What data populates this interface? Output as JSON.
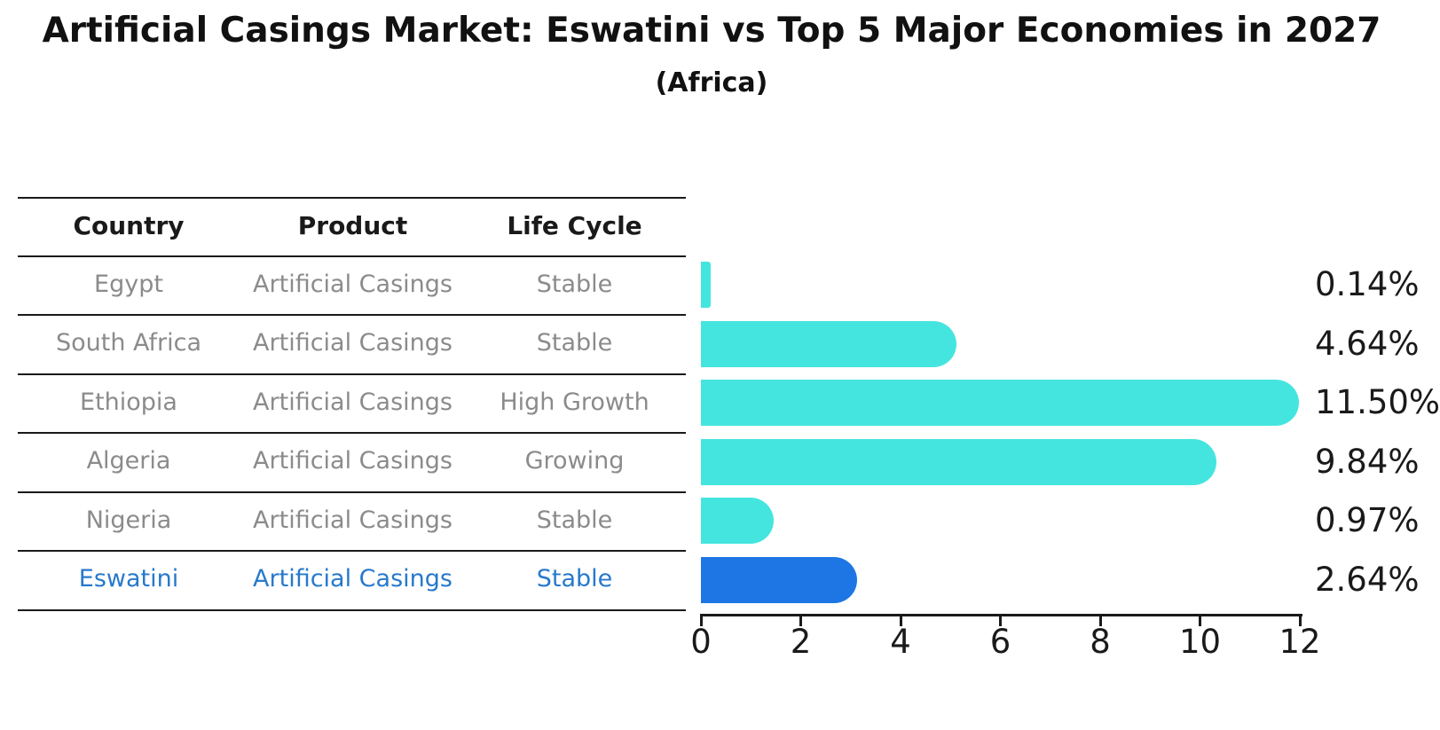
{
  "title": "Artificial Casings Market: Eswatini vs Top 5 Major Economies in 2027",
  "subtitle": "(Africa)",
  "table": {
    "headers": [
      "Country",
      "Product",
      "Life Cycle"
    ],
    "rows": [
      {
        "country": "Egypt",
        "product": "Artificial Casings",
        "life_cycle": "Stable",
        "highlighted": false
      },
      {
        "country": "South Africa",
        "product": "Artificial Casings",
        "life_cycle": "Stable",
        "highlighted": false
      },
      {
        "country": "Ethiopia",
        "product": "Artificial Casings",
        "life_cycle": "High Growth",
        "highlighted": false
      },
      {
        "country": "Algeria",
        "product": "Artificial Casings",
        "life_cycle": "Growing",
        "highlighted": false
      },
      {
        "country": "Nigeria",
        "product": "Artificial Casings",
        "life_cycle": "Stable",
        "highlighted": false
      },
      {
        "country": "Eswatini",
        "product": "Artificial Casings",
        "life_cycle": "Stable",
        "highlighted": true
      }
    ]
  },
  "chart_data": {
    "type": "bar",
    "orientation": "horizontal",
    "title": "Artificial Casings Market: Eswatini vs Top 5 Major Economies in 2027",
    "subtitle": "(Africa)",
    "categories": [
      "Egypt",
      "South Africa",
      "Ethiopia",
      "Algeria",
      "Nigeria",
      "Eswatini"
    ],
    "values": [
      0.14,
      4.64,
      11.5,
      9.84,
      0.97,
      2.64
    ],
    "value_labels": [
      "0.14%",
      "4.64%",
      "11.50%",
      "9.84%",
      "0.97%",
      "2.64%"
    ],
    "xlim": [
      0,
      12
    ],
    "xticks": [
      0,
      2,
      4,
      6,
      8,
      10,
      12
    ],
    "xtick_labels": [
      "0",
      "2",
      "4",
      "6",
      "8",
      "10",
      "12"
    ],
    "xlabel": "",
    "ylabel": "",
    "grid": false,
    "legend": false,
    "bar_color": "#45e5df",
    "highlight_color": "#1d76e4",
    "highlight_index": 5
  },
  "colors": {
    "text_dark": "#1a1a1a",
    "text_muted": "#8b8b8b",
    "highlight_text": "#2779cc"
  }
}
